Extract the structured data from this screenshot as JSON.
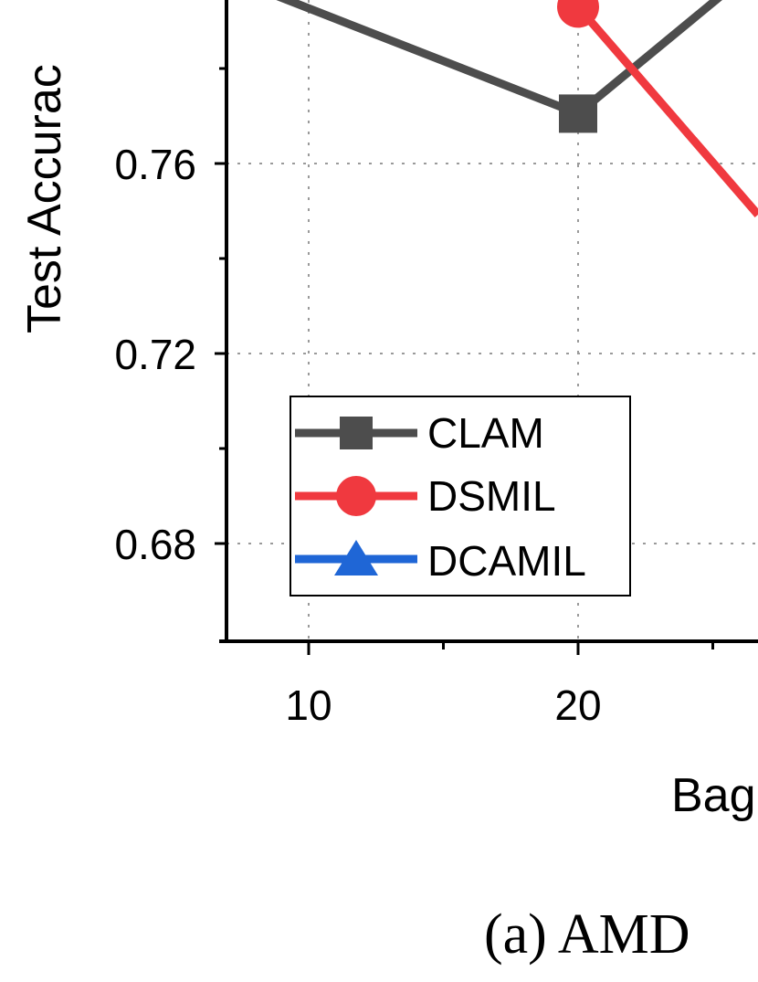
{
  "chart_data": {
    "type": "line",
    "xlabel": "Bag",
    "ylabel": "Test Accurac",
    "caption": "(a)  AMD",
    "x_ticks": [
      "10",
      "20"
    ],
    "y_ticks": [
      "0.68",
      "0.72",
      "0.76"
    ],
    "series": [
      {
        "name": "CLAM",
        "color": "#4d4d4d",
        "marker": "square",
        "points": [
          {
            "x": 20,
            "y": 0.7705
          }
        ]
      },
      {
        "name": "DSMIL",
        "color": "#f0393f",
        "marker": "circle",
        "points": [
          {
            "x": 20,
            "y": 0.793
          }
        ]
      },
      {
        "name": "DCAMIL",
        "color": "#1f66d6",
        "marker": "triangle",
        "points": []
      }
    ],
    "legend_position": "bottom-left",
    "grid": true
  }
}
